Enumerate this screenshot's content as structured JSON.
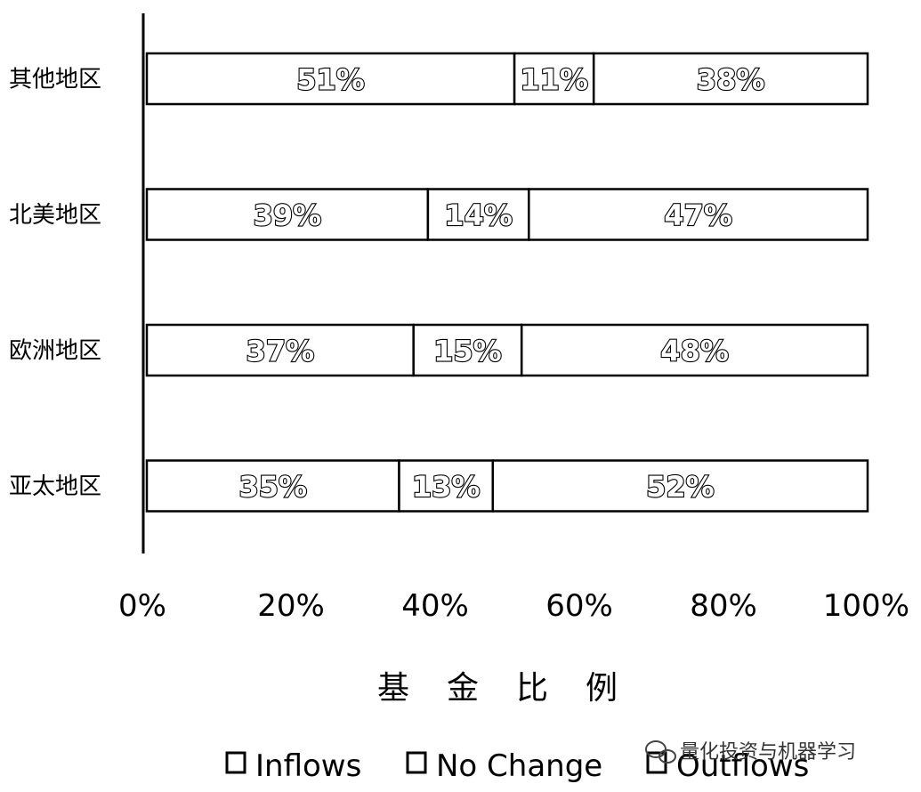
{
  "chart_data": {
    "type": "bar",
    "orientation": "horizontal",
    "stacked": true,
    "categories": [
      "其他地区",
      "北美地区",
      "欧洲地区",
      "亚太地区"
    ],
    "series": [
      {
        "name": "Inflows",
        "values": [
          51,
          39,
          37,
          35
        ],
        "labels": [
          "51%",
          "39%",
          "37%",
          "35%"
        ]
      },
      {
        "name": "No Change",
        "values": [
          11,
          14,
          15,
          13
        ],
        "labels": [
          "11%",
          "14%",
          "15%",
          "13%"
        ]
      },
      {
        "name": "Outflows",
        "values": [
          38,
          47,
          48,
          52
        ],
        "labels": [
          "38%",
          "47%",
          "48%",
          "52%"
        ]
      }
    ],
    "xlabel": "基金比例",
    "ylabel": "",
    "xlim": [
      0,
      100
    ],
    "xticks": [
      "0%",
      "20%",
      "40%",
      "60%",
      "80%",
      "100%"
    ],
    "legend": [
      "Inflows",
      "No Change",
      "Outflows"
    ],
    "legend_position": "bottom",
    "grid": false
  },
  "watermark": {
    "text": "量化投资与机器学习",
    "icon": "wechat-icon"
  }
}
